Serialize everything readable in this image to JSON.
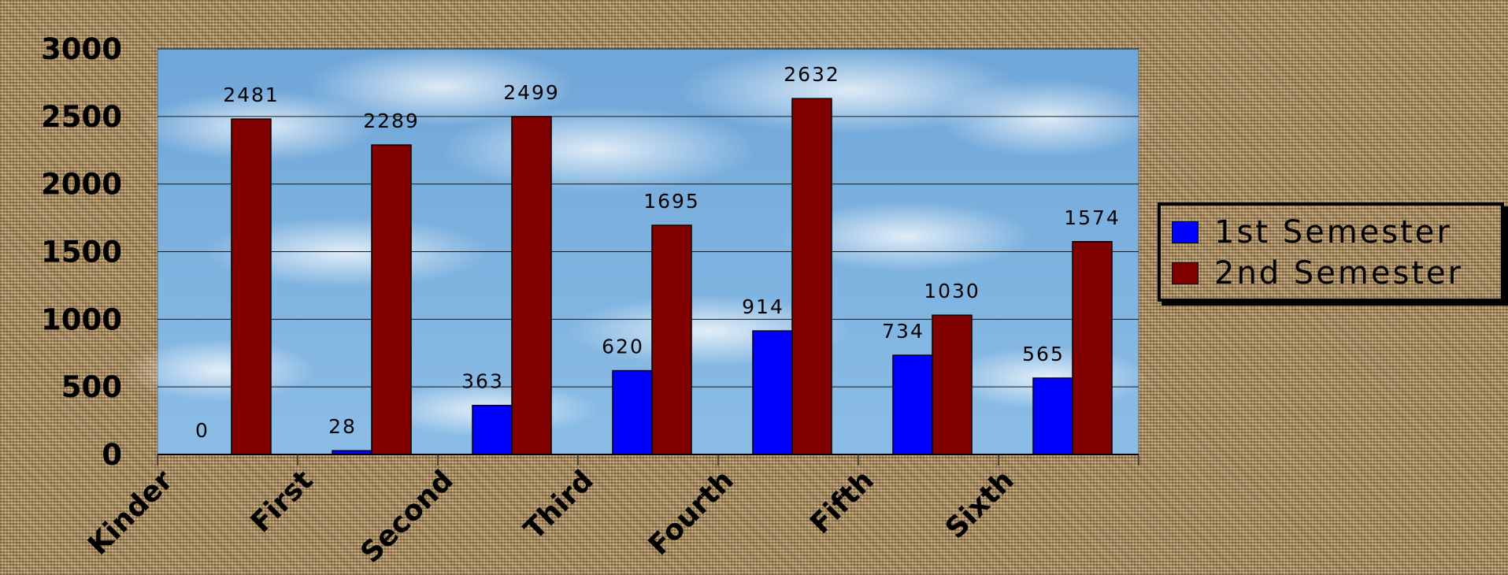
{
  "chart_data": {
    "type": "bar",
    "categories": [
      "Kinder",
      "First",
      "Second",
      "Third",
      "Fourth",
      "Fifth",
      "Sixth"
    ],
    "series": [
      {
        "name": "1st Semester",
        "color": "#0000ff",
        "values": [
          0,
          28,
          363,
          620,
          914,
          734,
          565
        ]
      },
      {
        "name": "2nd Semester",
        "color": "#800000",
        "values": [
          2481,
          2289,
          2499,
          1695,
          2632,
          1030,
          1574
        ]
      }
    ],
    "ylim": [
      0,
      3000
    ],
    "yticks": [
      0,
      500,
      1000,
      1500,
      2000,
      2500,
      3000
    ],
    "grid": true,
    "legend": "right",
    "title": "",
    "xlabel": "",
    "ylabel": ""
  }
}
